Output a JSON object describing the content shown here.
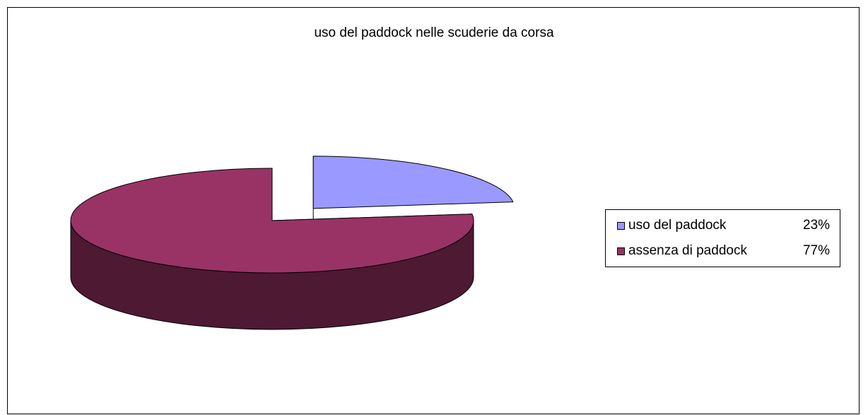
{
  "chart_data": {
    "type": "pie",
    "title": "uso del paddock nelle scuderie da corsa",
    "categories": [
      "uso del paddock",
      "assenza di paddock"
    ],
    "values": [
      23,
      77
    ],
    "value_labels": [
      "23%",
      "77%"
    ],
    "colors_top": [
      "#9999ff",
      "#993366"
    ],
    "colors_side": [
      "#4d4d80",
      "#4d1933"
    ],
    "exploded": true,
    "three_d": true,
    "legend_position": "right"
  }
}
